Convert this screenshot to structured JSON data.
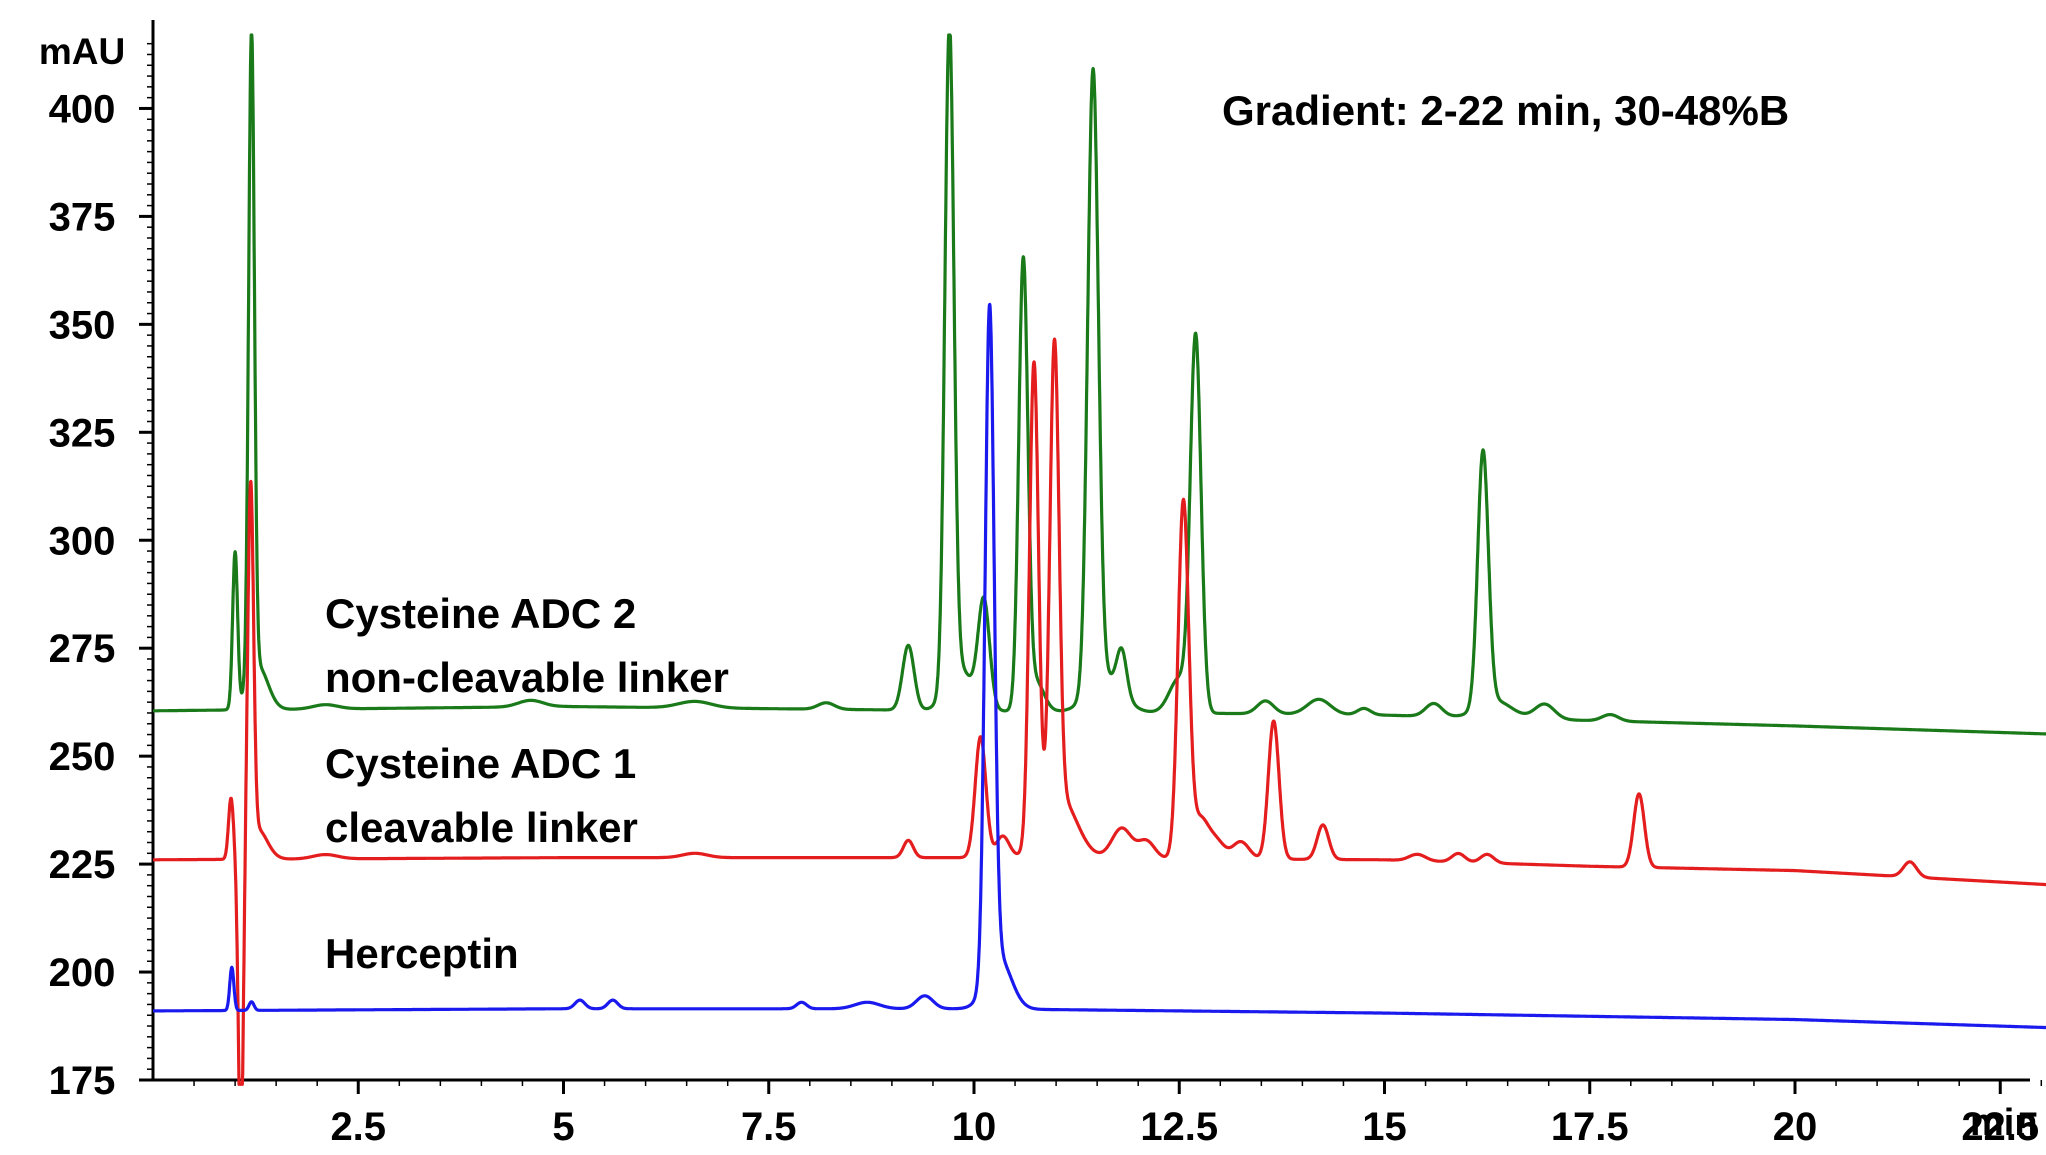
{
  "chart_data": {
    "type": "line",
    "title": "",
    "xlabel": "min",
    "ylabel": "mAU",
    "xlim": [
      0,
      23.3
    ],
    "ylim": [
      175,
      417
    ],
    "x_ticks": [
      2.5,
      5,
      7.5,
      10,
      12.5,
      15,
      17.5,
      20,
      22.5
    ],
    "x_tick_labels": [
      "2.5",
      "5",
      "7.5",
      "10",
      "12.5",
      "15",
      "17.5",
      "20",
      "22.5"
    ],
    "y_ticks": [
      175,
      200,
      225,
      250,
      275,
      300,
      325,
      350,
      375,
      400
    ],
    "y_tick_labels": [
      "175",
      "200",
      "225",
      "250",
      "275",
      "300",
      "325",
      "350",
      "375",
      "400"
    ],
    "grid": false,
    "annotation": "Gradient: 2-22 min, 30-48%B",
    "series_labels": [
      {
        "lines": [
          "Cysteine ADC 2",
          "non-cleavable linker"
        ]
      },
      {
        "lines": [
          "Cysteine ADC 1",
          "cleavable linker"
        ]
      },
      {
        "lines": [
          "Herceptin"
        ]
      }
    ],
    "series": [
      {
        "name": "Cysteine ADC 2 non-cleavable linker",
        "color": "#1a7a1a",
        "baseline": [
          [
            0,
            260.5
          ],
          [
            5,
            261.5
          ],
          [
            10,
            260.5
          ],
          [
            15,
            259.5
          ],
          [
            20,
            257.0
          ],
          [
            23.3,
            255.0
          ]
        ],
        "peaks": [
          {
            "x": 1.0,
            "h": 36,
            "w": 0.03
          },
          {
            "x": 1.2,
            "h": 150,
            "w": 0.035
          },
          {
            "x": 1.28,
            "h": 10,
            "w": 0.12
          },
          {
            "x": 2.1,
            "h": 1,
            "w": 0.15
          },
          {
            "x": 4.6,
            "h": 1.5,
            "w": 0.15
          },
          {
            "x": 6.6,
            "h": 1.5,
            "w": 0.2
          },
          {
            "x": 8.2,
            "h": 1.5,
            "w": 0.1
          },
          {
            "x": 9.2,
            "h": 15,
            "w": 0.07
          },
          {
            "x": 9.7,
            "h": 152,
            "w": 0.055
          },
          {
            "x": 9.82,
            "h": 10,
            "w": 0.15
          },
          {
            "x": 10.12,
            "h": 25,
            "w": 0.07
          },
          {
            "x": 10.6,
            "h": 103,
            "w": 0.055
          },
          {
            "x": 10.75,
            "h": 7,
            "w": 0.1
          },
          {
            "x": 11.45,
            "h": 143,
            "w": 0.065
          },
          {
            "x": 11.6,
            "h": 8,
            "w": 0.2
          },
          {
            "x": 11.8,
            "h": 10,
            "w": 0.06
          },
          {
            "x": 12.7,
            "h": 86,
            "w": 0.065
          },
          {
            "x": 12.5,
            "h": 8,
            "w": 0.12
          },
          {
            "x": 13.55,
            "h": 3,
            "w": 0.1
          },
          {
            "x": 14.2,
            "h": 3.5,
            "w": 0.14
          },
          {
            "x": 14.75,
            "h": 1.5,
            "w": 0.08
          },
          {
            "x": 15.6,
            "h": 3,
            "w": 0.1
          },
          {
            "x": 16.2,
            "h": 59,
            "w": 0.065
          },
          {
            "x": 16.35,
            "h": 4,
            "w": 0.2
          },
          {
            "x": 16.95,
            "h": 3.5,
            "w": 0.12
          },
          {
            "x": 17.75,
            "h": 1.5,
            "w": 0.1
          }
        ]
      },
      {
        "name": "Cysteine ADC 1 cleavable linker",
        "color": "#e41e1e",
        "baseline": [
          [
            0,
            226.0
          ],
          [
            5,
            226.5
          ],
          [
            10,
            226.5
          ],
          [
            15,
            226.0
          ],
          [
            17.5,
            224.5
          ],
          [
            20,
            223.5
          ],
          [
            23.3,
            220.0
          ]
        ],
        "peaks": [
          {
            "x": 0.95,
            "h": 14,
            "w": 0.03
          },
          {
            "x": 1.07,
            "h": -70,
            "w": 0.03
          },
          {
            "x": 1.19,
            "h": 82,
            "w": 0.035
          },
          {
            "x": 1.27,
            "h": 7,
            "w": 0.12
          },
          {
            "x": 2.1,
            "h": 1,
            "w": 0.15
          },
          {
            "x": 6.6,
            "h": 1,
            "w": 0.15
          },
          {
            "x": 9.2,
            "h": 4,
            "w": 0.06
          },
          {
            "x": 10.08,
            "h": 28,
            "w": 0.065
          },
          {
            "x": 10.35,
            "h": 5,
            "w": 0.08
          },
          {
            "x": 10.73,
            "h": 111,
            "w": 0.055
          },
          {
            "x": 10.98,
            "h": 107,
            "w": 0.055
          },
          {
            "x": 11.05,
            "h": 14,
            "w": 0.2
          },
          {
            "x": 11.8,
            "h": 7,
            "w": 0.12
          },
          {
            "x": 12.1,
            "h": 4,
            "w": 0.1
          },
          {
            "x": 12.55,
            "h": 82,
            "w": 0.065
          },
          {
            "x": 12.75,
            "h": 9,
            "w": 0.1
          },
          {
            "x": 12.95,
            "h": 4,
            "w": 0.1
          },
          {
            "x": 13.25,
            "h": 4,
            "w": 0.1
          },
          {
            "x": 13.65,
            "h": 32,
            "w": 0.065
          },
          {
            "x": 14.25,
            "h": 8,
            "w": 0.07
          },
          {
            "x": 15.4,
            "h": 1.5,
            "w": 0.1
          },
          {
            "x": 15.9,
            "h": 2,
            "w": 0.08
          },
          {
            "x": 16.25,
            "h": 2,
            "w": 0.08
          },
          {
            "x": 18.1,
            "h": 17,
            "w": 0.065
          },
          {
            "x": 21.4,
            "h": 3.5,
            "w": 0.08
          }
        ]
      },
      {
        "name": "Herceptin",
        "color": "#1a1aee",
        "baseline": [
          [
            0,
            191.0
          ],
          [
            5,
            191.5
          ],
          [
            10,
            191.5
          ],
          [
            15,
            190.5
          ],
          [
            20,
            189.0
          ],
          [
            23.3,
            187.0
          ]
        ],
        "peaks": [
          {
            "x": 0.96,
            "h": 10,
            "w": 0.025
          },
          {
            "x": 1.2,
            "h": 2,
            "w": 0.03
          },
          {
            "x": 5.2,
            "h": 2,
            "w": 0.06
          },
          {
            "x": 5.6,
            "h": 2,
            "w": 0.06
          },
          {
            "x": 7.9,
            "h": 1.5,
            "w": 0.06
          },
          {
            "x": 8.7,
            "h": 1.5,
            "w": 0.15
          },
          {
            "x": 9.4,
            "h": 3,
            "w": 0.1
          },
          {
            "x": 10.19,
            "h": 154,
            "w": 0.055
          },
          {
            "x": 10.3,
            "h": 12,
            "w": 0.15
          }
        ]
      }
    ]
  }
}
